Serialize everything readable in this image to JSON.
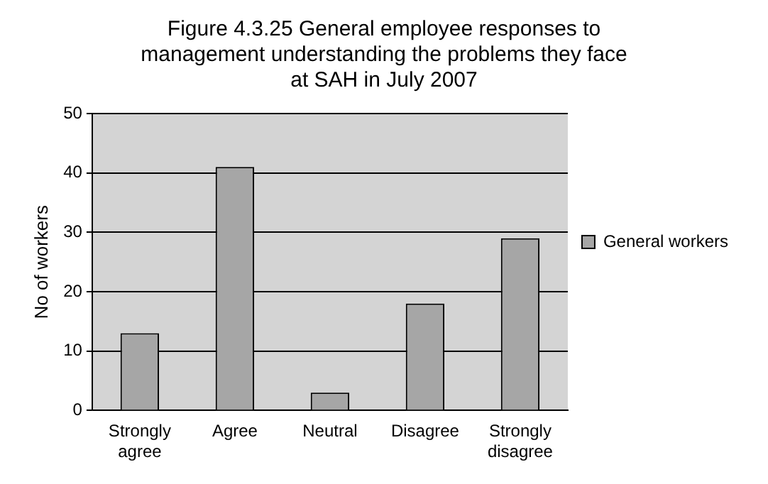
{
  "chart_data": {
    "type": "bar",
    "title": "Figure 4.3.25 General employee responses to management understanding the problems they face at SAH in July 2007",
    "ylabel": "No of workers",
    "categories": [
      "Strongly agree",
      "Agree",
      "Neutral",
      "Disagree",
      "Strongly disagree"
    ],
    "series": [
      {
        "name": "General workers",
        "color": "#a6a6a6",
        "values": [
          13,
          41,
          3,
          18,
          29
        ]
      }
    ],
    "ylim": [
      0,
      50
    ],
    "yticks": [
      0,
      10,
      20,
      30,
      40,
      50
    ],
    "grid": "y",
    "legend": "right"
  }
}
